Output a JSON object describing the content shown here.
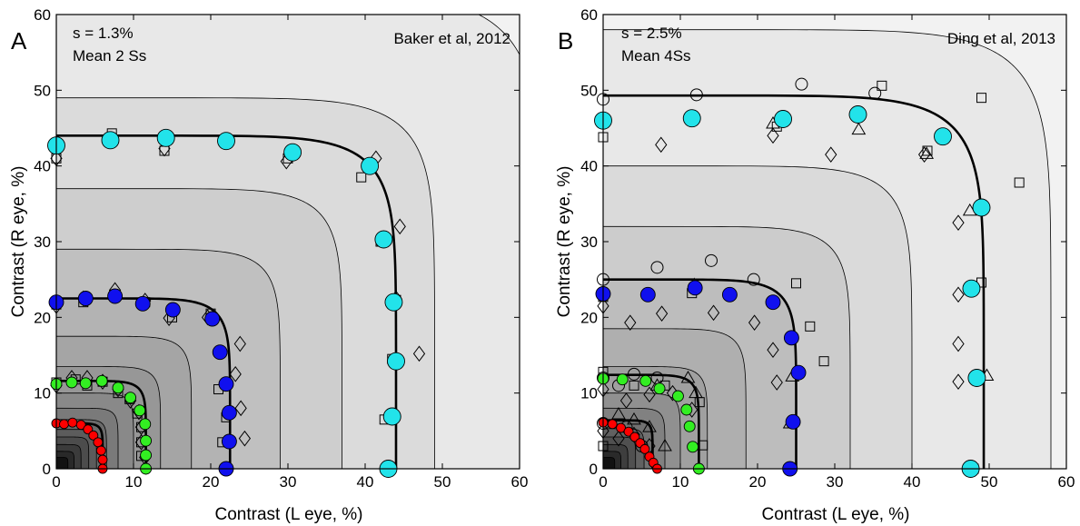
{
  "chart_data": [
    {
      "type": "scatter",
      "panel": "A",
      "annotation_s": "s = 1.3%",
      "annotation_subjects": "Mean 2 Ss",
      "source": "Baker et al, 2012",
      "xlabel": "Contrast (L eye, %)",
      "ylabel": "Contrast (R eye, %)",
      "xlim": [
        0,
        60
      ],
      "ylim": [
        0,
        60
      ],
      "xticks": [
        0,
        10,
        20,
        30,
        40,
        50,
        60
      ],
      "yticks": [
        0,
        10,
        20,
        30,
        40,
        50,
        60
      ],
      "background": "grayscale contour map of the model response surface",
      "fit_curves_exponent": 8,
      "fit_curves_radius": [
        6,
        11.6,
        22.5,
        44
      ],
      "contour_radius": [
        1.5,
        2.3,
        3.2,
        4.2,
        5.2,
        6.5,
        8.0,
        10.0,
        13.5,
        17.5,
        22.5,
        29,
        37,
        49,
        63
      ],
      "series": [
        {
          "name": "red",
          "color": "#ff0000",
          "marker": "filled circle",
          "points": [
            [
              0,
              6
            ],
            [
              1,
              5.9
            ],
            [
              2.1,
              6.1
            ],
            [
              3.2,
              5.8
            ],
            [
              4.1,
              5.2
            ],
            [
              4.8,
              4.4
            ],
            [
              5.4,
              3.5
            ],
            [
              5.8,
              2.4
            ],
            [
              6,
              1.2
            ],
            [
              6,
              0
            ]
          ]
        },
        {
          "name": "green",
          "color": "#33ee22",
          "marker": "filled circle",
          "points": [
            [
              0,
              11.2
            ],
            [
              2,
              11.4
            ],
            [
              3.8,
              11.3
            ],
            [
              5.9,
              11.6
            ],
            [
              8,
              10.7
            ],
            [
              9.6,
              9.4
            ],
            [
              10.8,
              7.7
            ],
            [
              11.5,
              5.9
            ],
            [
              11.6,
              3.7
            ],
            [
              11.6,
              1.8
            ],
            [
              11.6,
              0
            ]
          ]
        },
        {
          "name": "blue",
          "color": "#1010ee",
          "marker": "filled circle",
          "points": [
            [
              0,
              22
            ],
            [
              3.8,
              22.5
            ],
            [
              7.6,
              22.8
            ],
            [
              11.2,
              21.8
            ],
            [
              15.1,
              21
            ],
            [
              20.2,
              19.8
            ],
            [
              21.2,
              15.4
            ],
            [
              22,
              11.2
            ],
            [
              22.4,
              7.4
            ],
            [
              22.4,
              3.6
            ],
            [
              22,
              0
            ]
          ]
        },
        {
          "name": "cyan",
          "color": "#22e3ea",
          "marker": "filled circle",
          "points": [
            [
              0,
              42.7
            ],
            [
              7,
              43.4
            ],
            [
              14.2,
              43.7
            ],
            [
              22,
              43.3
            ],
            [
              30.6,
              41.8
            ],
            [
              40.6,
              40
            ],
            [
              42.4,
              30.3
            ],
            [
              43.7,
              22
            ],
            [
              44,
              14.2
            ],
            [
              43.5,
              6.9
            ],
            [
              43,
              0
            ]
          ]
        },
        {
          "name": "squares",
          "color": "#000000",
          "marker": "open square",
          "points": [
            [
              0,
              41
            ],
            [
              7.2,
              44.3
            ],
            [
              14,
              42
            ],
            [
              22,
              43.4
            ],
            [
              30,
              41
            ],
            [
              39.5,
              38.5
            ],
            [
              42,
              30
            ],
            [
              44,
              22.3
            ],
            [
              43.5,
              14.5
            ],
            [
              42.5,
              6.5
            ],
            [
              43,
              0
            ],
            [
              0,
              21.7
            ],
            [
              3.5,
              22
            ],
            [
              7.5,
              23
            ],
            [
              11.5,
              22
            ],
            [
              15,
              20
            ],
            [
              20,
              20.5
            ],
            [
              21,
              10.5
            ],
            [
              22,
              6.8
            ],
            [
              21.5,
              3.5
            ],
            [
              22,
              0
            ],
            [
              0,
              11.4
            ],
            [
              2.5,
              11.8
            ],
            [
              4,
              11
            ],
            [
              6,
              11.5
            ],
            [
              8,
              10
            ],
            [
              9.5,
              9.2
            ],
            [
              10.5,
              7.3
            ],
            [
              11,
              5.5
            ],
            [
              11,
              3.5
            ],
            [
              11,
              1.7
            ]
          ]
        },
        {
          "name": "diamonds",
          "color": "#000000",
          "marker": "open diamond",
          "points": [
            [
              0,
              41
            ],
            [
              14,
              42.3
            ],
            [
              29.8,
              40.6
            ],
            [
              41.4,
              41
            ],
            [
              44.5,
              32
            ],
            [
              44,
              22.5
            ],
            [
              47,
              15.2
            ],
            [
              0,
              21.5
            ],
            [
              3.5,
              22.5
            ],
            [
              7.6,
              23.6
            ],
            [
              11.5,
              22.2
            ],
            [
              14.6,
              19.9
            ],
            [
              19.6,
              20
            ],
            [
              23.8,
              16.5
            ],
            [
              23.2,
              12.5
            ],
            [
              23.9,
              8
            ],
            [
              24.4,
              4
            ],
            [
              0,
              11
            ],
            [
              2,
              12
            ],
            [
              4,
              12
            ],
            [
              6,
              11.5
            ],
            [
              8,
              10.5
            ],
            [
              9.6,
              9
            ],
            [
              10.7,
              7.5
            ],
            [
              11,
              5.5
            ],
            [
              11,
              3.5
            ],
            [
              11.5,
              1.5
            ]
          ]
        }
      ]
    },
    {
      "type": "scatter",
      "panel": "B",
      "annotation_s": "s = 2.5%",
      "annotation_subjects": "Mean 4Ss",
      "source": "Ding et al, 2013",
      "xlabel": "Contrast (L eye, %)",
      "ylabel": "Contrast (R eye, %)",
      "xlim": [
        0,
        60
      ],
      "ylim": [
        0,
        60
      ],
      "xticks": [
        0,
        10,
        20,
        30,
        40,
        50,
        60
      ],
      "yticks": [
        0,
        10,
        20,
        30,
        40,
        50,
        60
      ],
      "background": "grayscale contour map of the model response surface",
      "fit_curves_exponent": 8,
      "fit_curves_radius": [
        6.4,
        12.4,
        25,
        49.3
      ],
      "contour_radius": [
        1.5,
        2.3,
        3.2,
        4.2,
        5.3,
        6.5,
        8.0,
        10.0,
        13.5,
        18.5,
        25,
        32,
        40,
        58
      ],
      "series": [
        {
          "name": "red",
          "color": "#ff0000",
          "marker": "filled circle",
          "points": [
            [
              0,
              6.1
            ],
            [
              1.2,
              5.9
            ],
            [
              2.3,
              5.4
            ],
            [
              3.3,
              4.9
            ],
            [
              4.1,
              4.2
            ],
            [
              4.8,
              3.4
            ],
            [
              5.4,
              2.6
            ],
            [
              6,
              1.6
            ],
            [
              6.5,
              0.8
            ],
            [
              7,
              0
            ]
          ]
        },
        {
          "name": "green",
          "color": "#33ee22",
          "marker": "filled circle",
          "points": [
            [
              0,
              11.9
            ],
            [
              2.5,
              11.8
            ],
            [
              5.5,
              11.6
            ],
            [
              7.3,
              10.6
            ],
            [
              9.7,
              9.6
            ],
            [
              10.8,
              7.8
            ],
            [
              11.2,
              5.6
            ],
            [
              11.6,
              2.9
            ],
            [
              12.4,
              0
            ]
          ]
        },
        {
          "name": "blue",
          "color": "#1010ee",
          "marker": "filled circle",
          "points": [
            [
              0,
              23.1
            ],
            [
              5.8,
              23
            ],
            [
              11.9,
              23.9
            ],
            [
              16.4,
              23
            ],
            [
              22,
              22
            ],
            [
              24.4,
              17.3
            ],
            [
              25.3,
              12.7
            ],
            [
              24.6,
              6.2
            ],
            [
              24.2,
              0
            ]
          ]
        },
        {
          "name": "cyan",
          "color": "#22e3ea",
          "marker": "filled circle",
          "points": [
            [
              0,
              46
            ],
            [
              11.5,
              46.3
            ],
            [
              23.3,
              46.2
            ],
            [
              33,
              46.8
            ],
            [
              44,
              43.9
            ],
            [
              49,
              34.5
            ],
            [
              47.7,
              23.8
            ],
            [
              48.4,
              12
            ],
            [
              47.6,
              0
            ]
          ]
        },
        {
          "name": "circles",
          "color": "#000000",
          "marker": "open circle",
          "points": [
            [
              0,
              48.8
            ],
            [
              12.1,
              49.4
            ],
            [
              25.7,
              50.8
            ],
            [
              35.2,
              49.6
            ],
            [
              0,
              25
            ],
            [
              7,
              26.6
            ],
            [
              14,
              27.5
            ],
            [
              19.5,
              25
            ],
            [
              0,
              12
            ],
            [
              2,
              11
            ],
            [
              4,
              12.5
            ],
            [
              7,
              12
            ],
            [
              0,
              6
            ],
            [
              3,
              5.5
            ],
            [
              5,
              3
            ]
          ]
        },
        {
          "name": "squares",
          "color": "#000000",
          "marker": "open square",
          "points": [
            [
              0,
              43.8
            ],
            [
              22.5,
              45.2
            ],
            [
              36.1,
              50.6
            ],
            [
              42,
              42
            ],
            [
              49,
              49
            ],
            [
              53.9,
              37.8
            ],
            [
              49,
              24.6
            ],
            [
              48,
              0
            ],
            [
              0,
              22.7
            ],
            [
              11.5,
              23.2
            ],
            [
              25,
              24.5
            ],
            [
              26.8,
              18.8
            ],
            [
              28.6,
              14.2
            ],
            [
              0,
              12.8
            ],
            [
              4,
              11
            ],
            [
              8,
              11
            ],
            [
              12.5,
              8.8
            ],
            [
              12.9,
              3.1
            ],
            [
              0,
              3
            ]
          ]
        },
        {
          "name": "diamonds",
          "color": "#000000",
          "marker": "open diamond",
          "points": [
            [
              7.5,
              42.8
            ],
            [
              22,
              44
            ],
            [
              29.5,
              41.5
            ],
            [
              41.6,
              41.5
            ],
            [
              46,
              32.5
            ],
            [
              46,
              23
            ],
            [
              46,
              16.5
            ],
            [
              46,
              11.5
            ],
            [
              0,
              21.5
            ],
            [
              3.5,
              19.3
            ],
            [
              7.6,
              20.5
            ],
            [
              14.3,
              20.6
            ],
            [
              19.6,
              19.3
            ],
            [
              22,
              15.7
            ],
            [
              22.5,
              11.4
            ],
            [
              0,
              10.5
            ],
            [
              3,
              9
            ],
            [
              6,
              9.8
            ],
            [
              9,
              10
            ],
            [
              11.5,
              7.8
            ],
            [
              0,
              5
            ],
            [
              2,
              4
            ],
            [
              4,
              4.5
            ],
            [
              6,
              3
            ]
          ]
        },
        {
          "name": "triangles",
          "color": "#000000",
          "marker": "open triangle",
          "points": [
            [
              33.1,
              44.8
            ],
            [
              22,
              45.6
            ],
            [
              41.9,
              41.6
            ],
            [
              47.5,
              34.1
            ],
            [
              49.7,
              12.3
            ],
            [
              11.8,
              24.3
            ],
            [
              24.5,
              12.2
            ],
            [
              24.2,
              6
            ],
            [
              11,
              12
            ],
            [
              12,
              10
            ],
            [
              7,
              11
            ],
            [
              2,
              7.2
            ],
            [
              4,
              6.5
            ],
            [
              6,
              5.5
            ],
            [
              8,
              3
            ]
          ]
        }
      ]
    }
  ]
}
